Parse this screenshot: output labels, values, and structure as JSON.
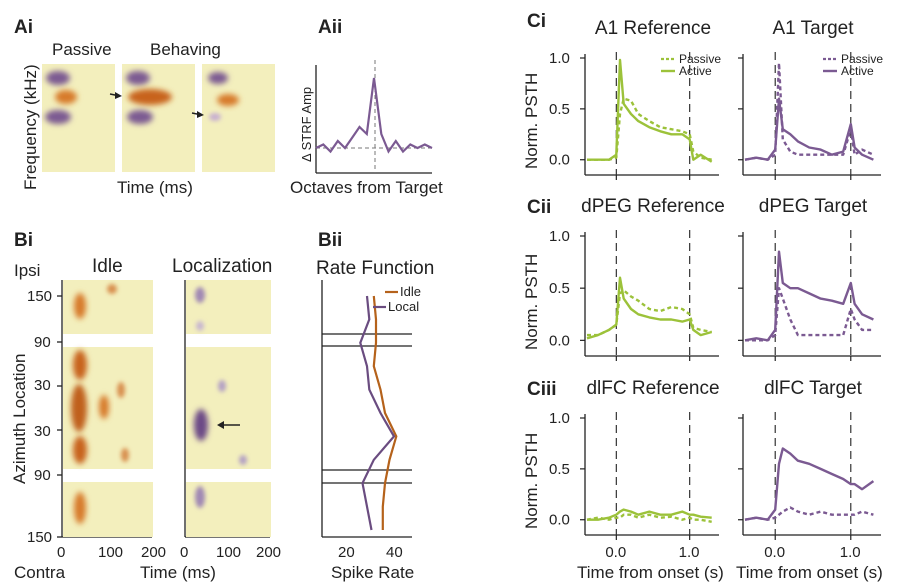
{
  "colors": {
    "green": "#9cc23a",
    "purple": "#7b5a92",
    "orange": "#b5621b",
    "strf_bg": "#f3efbd",
    "axis": "#222222"
  },
  "panels": {
    "Ai": "Ai",
    "Aii": "Aii",
    "Bi": "Bi",
    "Bii": "Bii",
    "Ci": "Ci",
    "Cii": "Cii",
    "Ciii": "Ciii"
  },
  "A": {
    "passive": "Passive",
    "behaving": "Behaving",
    "ylabel": "Frequency (kHz)",
    "xlabel": "Time (ms)",
    "aii_ylabel": "Δ STRF Amp",
    "aii_xlabel": "Octaves from Target"
  },
  "B": {
    "idle_title": "Idle",
    "local_title": "Localization",
    "ylabel": "Azimuth Location",
    "ipsi": "Ipsi",
    "contra": "Contra",
    "yticks": [
      "150",
      "90",
      "30",
      "30",
      "90",
      "150"
    ],
    "xticks": [
      "0",
      "100",
      "200",
      "0",
      "100",
      "200"
    ],
    "xlabel": "Time (ms)",
    "rate_title": "Rate Function",
    "rate_legend": [
      "Idle",
      "Local"
    ],
    "rate_xticks": [
      "20",
      "40"
    ],
    "rate_xlabel": "Spike Rate"
  },
  "C": {
    "ylabel": "Norm. PSTH",
    "yticks": [
      "1.0",
      "0.5",
      "0.0"
    ],
    "xticks": [
      "0.0",
      "1.0"
    ],
    "xlabel": "Time from onset (s)",
    "legend": [
      "Passive",
      "Active"
    ],
    "titles": {
      "a1_ref": "A1 Reference",
      "a1_tar": "A1 Target",
      "dpeg_ref": "dPEG Reference",
      "dpeg_tar": "dPEG Target",
      "dlfc_ref": "dlFC Reference",
      "dlfc_tar": "dlFC Target"
    }
  },
  "chart_data": [
    {
      "type": "line",
      "panel": "Ci",
      "title": "A1 Reference",
      "xlabel": "",
      "ylabel": "Norm. PSTH",
      "ylim": [
        0,
        1.0
      ],
      "x": [
        -0.4,
        -0.25,
        -0.1,
        0.0,
        0.05,
        0.1,
        0.2,
        0.3,
        0.45,
        0.6,
        0.75,
        0.9,
        1.0,
        1.05,
        1.15,
        1.3
      ],
      "series": [
        {
          "name": "Passive",
          "style": "dashed",
          "values": [
            0.0,
            0.0,
            0.0,
            0.02,
            0.45,
            0.6,
            0.58,
            0.45,
            0.38,
            0.32,
            0.3,
            0.28,
            0.25,
            0.08,
            0.02,
            0.0
          ]
        },
        {
          "name": "Active",
          "style": "solid",
          "values": [
            0.0,
            0.0,
            0.0,
            0.05,
            0.98,
            0.55,
            0.45,
            0.38,
            0.32,
            0.28,
            0.25,
            0.25,
            0.2,
            0.0,
            0.05,
            -0.02
          ]
        }
      ]
    },
    {
      "type": "line",
      "panel": "Ci",
      "title": "A1 Target",
      "xlabel": "",
      "ylabel": "",
      "ylim": [
        0,
        1.0
      ],
      "x": [
        -0.4,
        -0.25,
        -0.1,
        0.0,
        0.05,
        0.1,
        0.2,
        0.3,
        0.45,
        0.6,
        0.75,
        0.9,
        1.0,
        1.05,
        1.15,
        1.3
      ],
      "series": [
        {
          "name": "Passive",
          "style": "dashed",
          "values": [
            0.0,
            0.02,
            0.0,
            0.05,
            0.95,
            0.2,
            0.08,
            0.05,
            0.05,
            0.05,
            0.05,
            0.05,
            0.3,
            0.05,
            0.1,
            0.05
          ]
        },
        {
          "name": "Active",
          "style": "solid",
          "values": [
            0.0,
            0.02,
            0.0,
            0.1,
            0.6,
            0.3,
            0.25,
            0.18,
            0.12,
            0.1,
            0.05,
            0.08,
            0.35,
            0.12,
            0.05,
            0.0
          ]
        }
      ]
    },
    {
      "type": "line",
      "panel": "Cii",
      "title": "dPEG Reference",
      "xlabel": "",
      "ylabel": "Norm. PSTH",
      "ylim": [
        0,
        1.0
      ],
      "x": [
        -0.4,
        -0.25,
        -0.1,
        0.0,
        0.05,
        0.1,
        0.2,
        0.3,
        0.45,
        0.6,
        0.75,
        0.9,
        1.0,
        1.05,
        1.15,
        1.3
      ],
      "series": [
        {
          "name": "Passive",
          "style": "dashed",
          "values": [
            0.05,
            0.05,
            0.1,
            0.15,
            0.45,
            0.48,
            0.42,
            0.38,
            0.3,
            0.28,
            0.32,
            0.3,
            0.25,
            0.12,
            0.1,
            0.08
          ]
        },
        {
          "name": "Active",
          "style": "solid",
          "values": [
            0.02,
            0.05,
            0.1,
            0.15,
            0.6,
            0.4,
            0.3,
            0.25,
            0.22,
            0.2,
            0.2,
            0.18,
            0.2,
            0.1,
            0.05,
            0.08
          ]
        }
      ]
    },
    {
      "type": "line",
      "panel": "Cii",
      "title": "dPEG Target",
      "xlabel": "",
      "ylabel": "",
      "ylim": [
        0,
        1.0
      ],
      "x": [
        -0.4,
        -0.25,
        -0.1,
        0.0,
        0.05,
        0.1,
        0.2,
        0.3,
        0.45,
        0.6,
        0.75,
        0.9,
        1.0,
        1.05,
        1.15,
        1.3
      ],
      "series": [
        {
          "name": "Passive",
          "style": "dashed",
          "values": [
            0.0,
            0.0,
            0.0,
            0.05,
            0.5,
            0.4,
            0.2,
            0.05,
            0.05,
            0.05,
            0.05,
            0.05,
            0.3,
            0.2,
            0.1,
            0.1
          ]
        },
        {
          "name": "Active",
          "style": "solid",
          "values": [
            0.0,
            0.02,
            0.0,
            0.1,
            0.85,
            0.55,
            0.5,
            0.5,
            0.45,
            0.4,
            0.38,
            0.35,
            0.55,
            0.35,
            0.25,
            0.2
          ]
        }
      ]
    },
    {
      "type": "line",
      "panel": "Ciii",
      "title": "dlFC Reference",
      "xlabel": "Time from onset (s)",
      "ylabel": "Norm. PSTH",
      "ylim": [
        0,
        1.0
      ],
      "x": [
        -0.4,
        -0.25,
        -0.1,
        0.0,
        0.05,
        0.1,
        0.2,
        0.3,
        0.45,
        0.6,
        0.75,
        0.9,
        1.0,
        1.05,
        1.15,
        1.3
      ],
      "series": [
        {
          "name": "Passive",
          "style": "dashed",
          "values": [
            0.0,
            0.02,
            0.0,
            0.02,
            0.02,
            0.05,
            0.05,
            0.02,
            0.05,
            0.02,
            0.03,
            0.0,
            0.02,
            0.0,
            0.0,
            -0.02
          ]
        },
        {
          "name": "Active",
          "style": "solid",
          "values": [
            0.0,
            0.0,
            0.02,
            0.05,
            0.08,
            0.1,
            0.08,
            0.05,
            0.08,
            0.05,
            0.05,
            0.08,
            0.05,
            0.05,
            0.03,
            0.02
          ]
        }
      ]
    },
    {
      "type": "line",
      "panel": "Ciii",
      "title": "dlFC Target",
      "xlabel": "Time from onset (s)",
      "ylabel": "",
      "ylim": [
        0,
        1.0
      ],
      "x": [
        -0.4,
        -0.25,
        -0.1,
        0.0,
        0.05,
        0.1,
        0.2,
        0.3,
        0.45,
        0.6,
        0.75,
        0.9,
        1.0,
        1.05,
        1.15,
        1.3
      ],
      "series": [
        {
          "name": "Passive",
          "style": "dashed",
          "values": [
            0.0,
            0.02,
            0.0,
            0.02,
            0.05,
            0.08,
            0.12,
            0.08,
            0.05,
            0.08,
            0.05,
            0.05,
            0.05,
            0.05,
            0.08,
            0.05
          ]
        },
        {
          "name": "Active",
          "style": "solid",
          "values": [
            0.0,
            0.02,
            0.0,
            0.1,
            0.55,
            0.7,
            0.65,
            0.58,
            0.55,
            0.5,
            0.45,
            0.4,
            0.35,
            0.35,
            0.3,
            0.38
          ]
        }
      ]
    },
    {
      "type": "line",
      "panel": "Aii",
      "xlabel": "Octaves from Target",
      "ylabel": "Δ STRF Amp",
      "x": [
        -4,
        -3.5,
        -3,
        -2.5,
        -2,
        -1.5,
        -1,
        -0.5,
        0,
        0.5,
        1,
        1.5,
        2,
        2.5,
        3,
        3.5,
        4
      ],
      "series": [
        {
          "name": "",
          "values": [
            0.0,
            0.05,
            -0.05,
            0.1,
            0.0,
            0.15,
            0.3,
            0.2,
            1.0,
            0.2,
            -0.05,
            0.1,
            -0.05,
            0.05,
            0.0,
            0.05,
            0.0
          ]
        }
      ]
    },
    {
      "type": "line",
      "panel": "Bii",
      "title": "Rate Function",
      "xlabel": "Spike Rate",
      "ylabel": "Azimuth Location",
      "y": [
        150,
        120,
        90,
        60,
        30,
        0,
        -30,
        -60,
        -90,
        -120,
        -150
      ],
      "series": [
        {
          "name": "Idle",
          "values": [
            33,
            34,
            34,
            33,
            36,
            38,
            43,
            40,
            38,
            37,
            37
          ]
        },
        {
          "name": "Local",
          "values": [
            30,
            31,
            27,
            30,
            31,
            36,
            42,
            33,
            28,
            30,
            32
          ]
        }
      ]
    }
  ]
}
